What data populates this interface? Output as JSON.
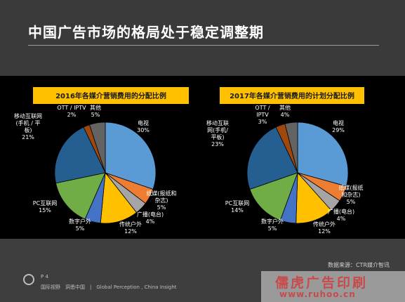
{
  "header": {
    "title": "中国广告市场的格局处于稳定调整期"
  },
  "chart_data": [
    {
      "type": "pie",
      "title": "2016年各媒介营销费用的分配比例",
      "slices": [
        {
          "name": "电视",
          "value": 30,
          "label": "30%",
          "color": "#5b9bd5"
        },
        {
          "name": "纸媒(报纸和杂志)",
          "value": 5,
          "label": "5%",
          "color": "#ed7d31"
        },
        {
          "name": "广播(电台)",
          "value": 4,
          "label": "4%",
          "color": "#a5a5a5"
        },
        {
          "name": "传统户外",
          "value": 12,
          "label": "12%",
          "color": "#ffc000"
        },
        {
          "name": "数字户外",
          "value": 5,
          "label": "5%",
          "color": "#4472c4"
        },
        {
          "name": "PC互联网",
          "value": 15,
          "label": "15%",
          "color": "#70ad47"
        },
        {
          "name": "移动互联网(手机/平板)",
          "value": 21,
          "label": "21%",
          "color": "#255e91"
        },
        {
          "name": "OTT / IPTV",
          "value": 2,
          "label": "2%",
          "color": "#9e480e"
        },
        {
          "name": "其他",
          "value": 5,
          "label": "5%",
          "color": "#636363"
        }
      ]
    },
    {
      "type": "pie",
      "title": "2017年各媒介营销费用的计划分配比例",
      "slices": [
        {
          "name": "电视",
          "value": 29,
          "label": "29%",
          "color": "#5b9bd5"
        },
        {
          "name": "纸媒(报纸和杂志)",
          "value": 5,
          "label": "5%",
          "color": "#ed7d31"
        },
        {
          "name": "广播(电台)",
          "value": 4,
          "label": "4%",
          "color": "#a5a5a5"
        },
        {
          "name": "传统户外",
          "value": 12,
          "label": "12%",
          "color": "#ffc000"
        },
        {
          "name": "数字户外",
          "value": 5,
          "label": "5%",
          "color": "#4472c4"
        },
        {
          "name": "PC互联网",
          "value": 14,
          "label": "14%",
          "color": "#70ad47"
        },
        {
          "name": "移动互联网(手机/平板)",
          "value": 23,
          "label": "23%",
          "color": "#255e91"
        },
        {
          "name": "OTT / IPTV",
          "value": 3,
          "label": "3%",
          "color": "#9e480e"
        },
        {
          "name": "其他",
          "value": 4,
          "label": "4%",
          "color": "#636363"
        }
      ]
    }
  ],
  "labels": {
    "chart1": [
      {
        "lines": [
          "电视"
        ],
        "pct": "30%"
      },
      {
        "lines": [
          "纸媒(报纸和",
          "杂志)"
        ],
        "pct": "5%"
      },
      {
        "lines": [
          "广播(电台)"
        ],
        "pct": "4%"
      },
      {
        "lines": [
          "传统户外"
        ],
        "pct": "12%"
      },
      {
        "lines": [
          "数字户外"
        ],
        "pct": "5%"
      },
      {
        "lines": [
          "PC互联网"
        ],
        "pct": "15%"
      },
      {
        "lines": [
          "移动互联网",
          "(手机 / 平",
          "板)"
        ],
        "pct": "21%"
      },
      {
        "lines": [
          "OTT / IPTV"
        ],
        "pct": "2%"
      },
      {
        "lines": [
          "其他"
        ],
        "pct": "5%"
      }
    ],
    "chart2": [
      {
        "lines": [
          "电视"
        ],
        "pct": "29%"
      },
      {
        "lines": [
          "纸媒(报纸",
          "和杂志)"
        ],
        "pct": "5%"
      },
      {
        "lines": [
          "广播(电台)"
        ],
        "pct": "4%"
      },
      {
        "lines": [
          "传统户外"
        ],
        "pct": "12%"
      },
      {
        "lines": [
          "数字户外"
        ],
        "pct": "5%"
      },
      {
        "lines": [
          "PC互联网"
        ],
        "pct": "14%"
      },
      {
        "lines": [
          "移动互联",
          "网(手机/",
          "平板)"
        ],
        "pct": "23%"
      },
      {
        "lines": [
          "OTT /",
          "IPTV"
        ],
        "pct": "3%"
      },
      {
        "lines": [
          "其他"
        ],
        "pct": "4%"
      }
    ]
  },
  "source": "数据来源：CTR媒介智讯",
  "footer": {
    "page": "P 4",
    "text": "国际视野　洞悉中国　|　Global Perception , China Insight"
  },
  "watermark": {
    "main": "儒虎广告印刷",
    "sub": "www.ruhoo.cn"
  },
  "colors": {
    "title_box": "#ffc000",
    "title_box_text": "#1a1a1a",
    "label_text": "#ffffff"
  }
}
